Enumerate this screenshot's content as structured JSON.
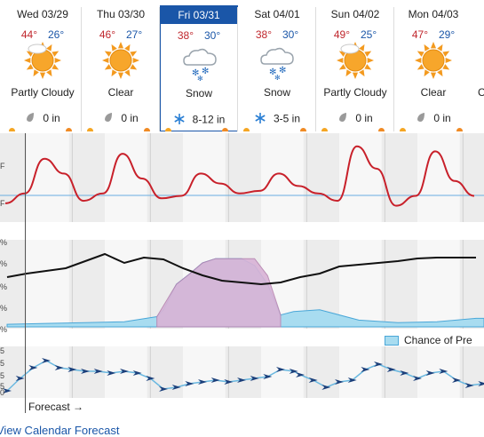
{
  "days": [
    {
      "name": "Wed 03/29",
      "hi": "44°",
      "lo": "26°",
      "condition": "Partly Cloudy",
      "icon": "partly-cloudy-sun-icon",
      "precip": "0 in",
      "precip_icon": "rain-drop-icon"
    },
    {
      "name": "Thu 03/30",
      "hi": "46°",
      "lo": "27°",
      "condition": "Clear",
      "icon": "sun-icon",
      "precip": "0 in",
      "precip_icon": "rain-drop-icon"
    },
    {
      "name": "Fri 03/31",
      "hi": "38°",
      "lo": "30°",
      "condition": "Snow",
      "icon": "snow-cloud-icon",
      "precip": "8-12 in",
      "precip_icon": "snowflake-icon",
      "selected": true
    },
    {
      "name": "Sat 04/01",
      "hi": "38°",
      "lo": "30°",
      "condition": "Snow",
      "icon": "snow-cloud-icon",
      "precip": "3-5 in",
      "precip_icon": "snowflake-icon"
    },
    {
      "name": "Sun 04/02",
      "hi": "49°",
      "lo": "25°",
      "condition": "Partly Cloudy",
      "icon": "partly-cloudy-sun-icon",
      "precip": "0 in",
      "precip_icon": "rain-drop-icon"
    },
    {
      "name": "Mon 04/03",
      "hi": "47°",
      "lo": "29°",
      "condition": "Clear",
      "icon": "sun-icon",
      "precip": "0 in",
      "precip_icon": "rain-drop-icon"
    }
  ],
  "partial_next_day_condition": "C",
  "temp_axis": {
    "labels": [
      "F",
      "F"
    ]
  },
  "precip_axis": {
    "labels": [
      "%",
      "%",
      "%",
      "%",
      "%"
    ]
  },
  "wind_axis": {
    "labels": [
      "5",
      "5",
      "5",
      "5",
      "0"
    ]
  },
  "legend": {
    "label": "Chance of Pre"
  },
  "forecast_marker": "Forecast →",
  "view_link": "View Calendar Forecast",
  "colors": {
    "temp_line": "#c8202a",
    "precip_fill": "#a8dcf0",
    "snow_fill": "#d9b3d6",
    "humidity_line": "#111111",
    "wind_line": "#6ab8e0",
    "wind_barb": "#1b3f7a",
    "selected": "#1a56a8"
  },
  "chart_data": [
    {
      "type": "line",
      "name": "temperature",
      "x_hours": [
        0,
        6,
        12,
        18,
        24,
        30,
        36,
        42,
        48,
        54,
        60,
        66,
        72,
        78,
        84,
        90,
        96,
        102,
        108,
        114,
        120,
        126,
        132,
        138,
        144
      ],
      "values": [
        26,
        30,
        44,
        38,
        27,
        30,
        46,
        36,
        28,
        29,
        38,
        34,
        30,
        31,
        38,
        33,
        30,
        27,
        49,
        40,
        25,
        29,
        47,
        35,
        29
      ]
    },
    {
      "type": "area",
      "name": "precip-chance",
      "x_hours": [
        0,
        12,
        24,
        36,
        46,
        48,
        52,
        56,
        60,
        64,
        68,
        72,
        76,
        80,
        84,
        88,
        96,
        108,
        120,
        132,
        144
      ],
      "values": [
        3,
        4,
        5,
        6,
        12,
        20,
        50,
        62,
        75,
        80,
        80,
        80,
        72,
        50,
        14,
        18,
        20,
        8,
        5,
        6,
        10
      ]
    }
  ]
}
